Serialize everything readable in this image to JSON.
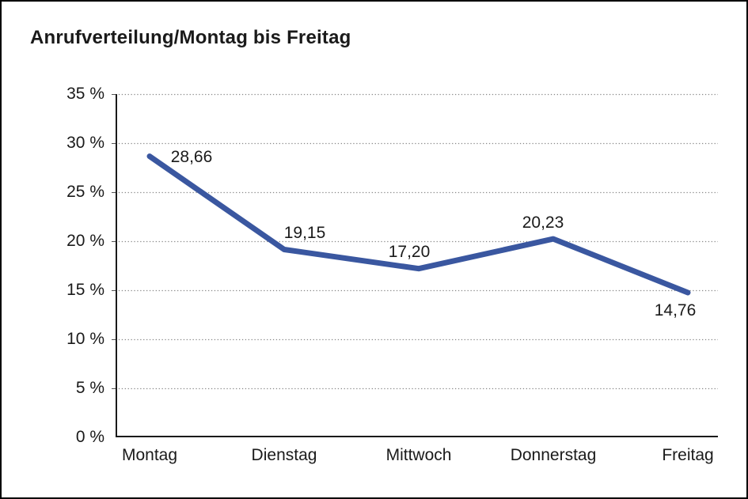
{
  "window": {
    "background": "#ffffff",
    "border_color": "#000000"
  },
  "chart_data": {
    "type": "line",
    "title": "Anrufverteilung/Montag bis Freitag",
    "categories": [
      "Montag",
      "Dienstag",
      "Mittwoch",
      "Donnerstag",
      "Freitag"
    ],
    "series": [
      {
        "name": "Anrufverteilung",
        "values": [
          28.66,
          19.15,
          17.2,
          20.23,
          14.76
        ]
      }
    ],
    "point_labels": [
      "28,66",
      "19,15",
      "17,20",
      "20,23",
      "14,76"
    ],
    "y_tick_labels": [
      "35 %",
      "30 %",
      "25 %",
      "20 %",
      "15 %",
      "10 %",
      "5 %",
      "0 %"
    ],
    "ylim": [
      0,
      35
    ],
    "y_step": 5,
    "xlabel": "",
    "ylabel": "",
    "grid": "horizontal-dotted",
    "legend": "none",
    "colors": {
      "line": "#3A57A0",
      "axis": "#1a1a1a",
      "gridline": "#888888",
      "text": "#1a1a1a"
    }
  }
}
